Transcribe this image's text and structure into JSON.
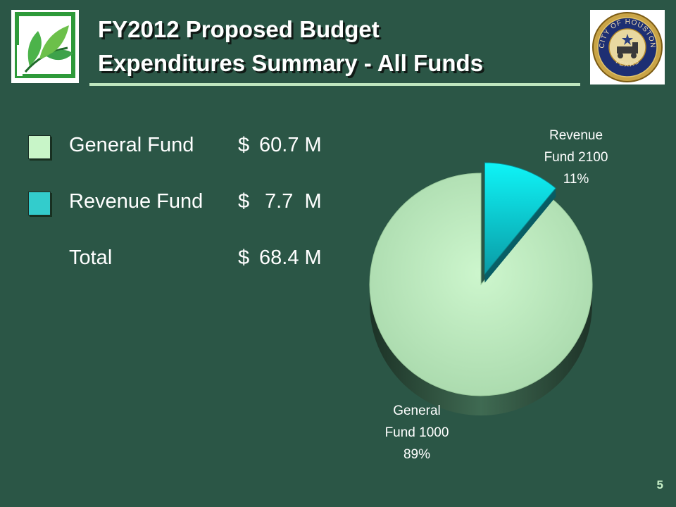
{
  "header": {
    "title_line1": "FY2012 Proposed Budget",
    "title_line2": "Expenditures Summary - All Funds"
  },
  "legend": {
    "items": [
      {
        "label": "General Fund",
        "currency": "$",
        "amount": "60.7 M",
        "swatch_color": "#c8f5c8"
      },
      {
        "label": "Revenue Fund",
        "currency": "$",
        "amount": " 7.7  M",
        "swatch_color": "#33cccc"
      },
      {
        "label": "Total",
        "currency": "$",
        "amount": "68.4 M",
        "swatch_color": ""
      }
    ]
  },
  "seal": {
    "icon": "city-of-houston-seal-icon",
    "text_top": "CITY OF HOUSTON",
    "text_bottom": "TEXAS"
  },
  "logo": {
    "icon": "green-leaves-logo-icon"
  },
  "page_number": "5",
  "chart_data": {
    "type": "pie",
    "title": "",
    "slices": [
      {
        "name": "Revenue Fund 2100",
        "label_line1": "Revenue",
        "label_line2": "Fund 2100",
        "percent_label": "11%",
        "value": 11,
        "color": "#11f1f4"
      },
      {
        "name": "General Fund 1000",
        "label_line1": "General",
        "label_line2": "Fund 1000",
        "percent_label": "89%",
        "value": 89,
        "color": "#c9f3c9"
      }
    ]
  }
}
